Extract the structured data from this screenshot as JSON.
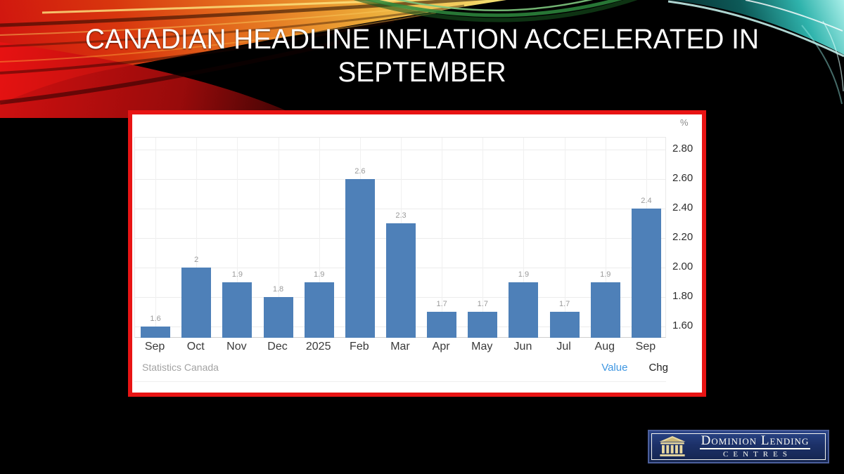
{
  "slide": {
    "title": "CANADIAN HEADLINE INFLATION ACCELERATED IN SEPTEMBER"
  },
  "chart_data": {
    "type": "bar",
    "categories": [
      "Sep",
      "Oct",
      "Nov",
      "Dec",
      "2025",
      "Feb",
      "Mar",
      "Apr",
      "May",
      "Jun",
      "Jul",
      "Aug",
      "Sep"
    ],
    "values": [
      1.6,
      2,
      1.9,
      1.8,
      1.9,
      2.6,
      2.3,
      1.7,
      1.7,
      1.9,
      1.7,
      1.9,
      2.4
    ],
    "bar_value_labels": [
      "1.6",
      "2",
      "1.9",
      "1.8",
      "1.9",
      "2.6",
      "2.3",
      "1.7",
      "1.7",
      "1.9",
      "1.7",
      "1.9",
      "2.4"
    ],
    "y_axis": {
      "unit": "%",
      "side": "right",
      "tick_labels": [
        "1.60",
        "1.80",
        "2.00",
        "2.20",
        "2.40",
        "2.60",
        "2.80"
      ],
      "range": [
        1.52,
        2.88
      ]
    },
    "grid": true,
    "bar_color": "#4e80b8",
    "source": "Statistics Canada",
    "legend": [
      "Value",
      "Chg"
    ],
    "active_series": "Value",
    "legend_value_label": "Value",
    "legend_chg_label": "Chg"
  },
  "logo": {
    "name": "Dominion Lending",
    "sub": "CENTRES"
  },
  "colors": {
    "chart_border": "#e81414",
    "bar": "#4e80b8",
    "legend_active": "#3f97e2"
  }
}
